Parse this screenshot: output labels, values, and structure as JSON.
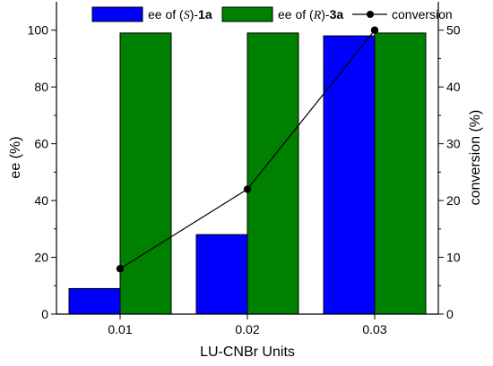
{
  "chart_data": {
    "type": "bar",
    "categories": [
      "0.01",
      "0.02",
      "0.03"
    ],
    "xlabel": "LU-CNBr Units",
    "ylabel": "ee (%)",
    "y2label": "conversion (%)",
    "ylim": [
      0,
      110
    ],
    "y2lim": [
      0,
      55
    ],
    "yticks": [
      "0",
      "20",
      "40",
      "60",
      "80",
      "100"
    ],
    "y2ticks": [
      "0",
      "10",
      "20",
      "30",
      "40",
      "50"
    ],
    "grid": false,
    "legend_position": "top",
    "series": [
      {
        "name": "ee of (S)-1a",
        "name_parts": [
          "ee of (",
          "S",
          ")-",
          "1a"
        ],
        "type": "bar",
        "axis": "left",
        "color": "#0000ff",
        "values": [
          9,
          28,
          98
        ]
      },
      {
        "name": "ee of (R)-3a",
        "name_parts": [
          "ee of (",
          "R",
          ")-",
          "3a"
        ],
        "type": "bar",
        "axis": "left",
        "color": "#008000",
        "values": [
          99,
          99,
          99
        ]
      },
      {
        "name": "conversion",
        "type": "line",
        "axis": "right",
        "color": "#000000",
        "values": [
          8,
          22,
          50
        ]
      }
    ]
  }
}
